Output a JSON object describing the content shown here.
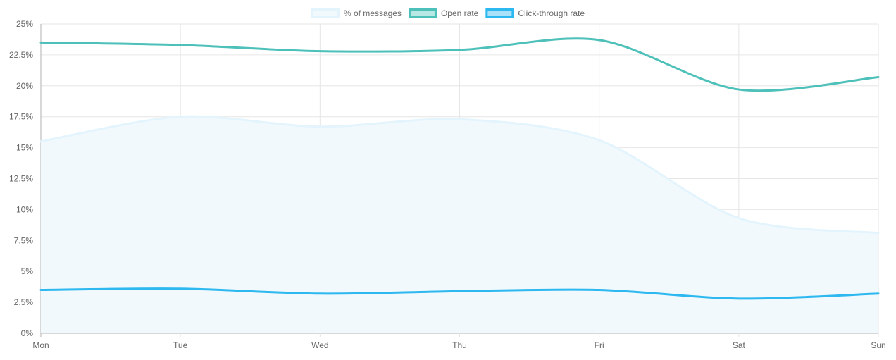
{
  "chart_data": {
    "type": "line",
    "title": "",
    "xlabel": "",
    "ylabel": "",
    "categories": [
      "Mon",
      "Tue",
      "Wed",
      "Thu",
      "Fri",
      "Sat",
      "Sun"
    ],
    "ylim": [
      0,
      25
    ],
    "yticks": [
      "0%",
      "2.5%",
      "5%",
      "7.5%",
      "10%",
      "12.5%",
      "15%",
      "17.5%",
      "20%",
      "22.5%",
      "25%"
    ],
    "grid": true,
    "legend_position": "top",
    "series": [
      {
        "name": "% of messages",
        "values": [
          15.5,
          17.5,
          16.7,
          17.3,
          15.6,
          9.3,
          8.1
        ],
        "stroke": "#e3f4fd",
        "fill": "#f1f9fd",
        "filled": true
      },
      {
        "name": "Open rate",
        "values": [
          23.5,
          23.3,
          22.8,
          22.9,
          23.7,
          19.7,
          20.7
        ],
        "stroke": "#4dc0b9",
        "fill": "#b7e8e4",
        "filled": false
      },
      {
        "name": "Click-through rate",
        "values": [
          3.5,
          3.6,
          3.2,
          3.4,
          3.5,
          2.8,
          3.2
        ],
        "stroke": "#2db8ef",
        "fill": "#a8e1f8",
        "filled": false
      }
    ]
  }
}
